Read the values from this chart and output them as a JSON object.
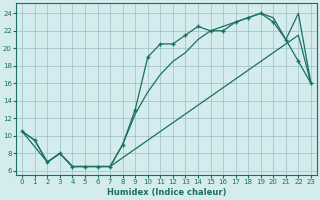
{
  "xlabel": "Humidex (Indice chaleur)",
  "xlim": [
    -0.5,
    23.5
  ],
  "ylim": [
    5.5,
    25.2
  ],
  "xticks": [
    0,
    1,
    2,
    3,
    4,
    5,
    6,
    7,
    8,
    9,
    10,
    11,
    12,
    13,
    14,
    15,
    16,
    17,
    18,
    19,
    20,
    21,
    22,
    23
  ],
  "yticks": [
    6,
    8,
    10,
    12,
    14,
    16,
    18,
    20,
    22,
    24
  ],
  "color": "#1a7060",
  "bg_color": "#d4ecee",
  "curve_with_markers_x": [
    0,
    1,
    2,
    3,
    4,
    5,
    6,
    7,
    8,
    9,
    10,
    11,
    12,
    13,
    14,
    15,
    16,
    17,
    18,
    19,
    20,
    21,
    22,
    23
  ],
  "curve_with_markers_y": [
    10.5,
    9.5,
    7.0,
    8.0,
    6.5,
    6.5,
    6.5,
    6.5,
    9.0,
    13.0,
    19.0,
    20.5,
    20.5,
    21.5,
    22.5,
    22.0,
    22.0,
    23.0,
    23.5,
    24.0,
    23.0,
    21.0,
    18.5,
    16.0
  ],
  "curve_straight_x": [
    0,
    1,
    2,
    3,
    4,
    5,
    6,
    7,
    8,
    9,
    10,
    11,
    12,
    13,
    14,
    15,
    16,
    17,
    18,
    19,
    20,
    21,
    22,
    23
  ],
  "curve_straight_y": [
    10.5,
    9.5,
    7.0,
    8.0,
    6.5,
    6.5,
    6.5,
    6.5,
    7.5,
    8.5,
    9.5,
    10.5,
    11.5,
    12.5,
    13.5,
    14.5,
    15.5,
    16.5,
    17.5,
    18.5,
    19.5,
    20.5,
    21.5,
    16.0
  ],
  "curve_middle_x": [
    0,
    2,
    3,
    4,
    5,
    6,
    7,
    8,
    9,
    10,
    11,
    12,
    13,
    14,
    15,
    16,
    17,
    18,
    19,
    20,
    21,
    22,
    23
  ],
  "curve_middle_y": [
    10.5,
    7.0,
    8.0,
    6.5,
    6.5,
    6.5,
    6.5,
    9.0,
    12.5,
    15.0,
    17.0,
    18.5,
    19.5,
    21.0,
    22.0,
    22.5,
    23.0,
    23.5,
    24.0,
    23.5,
    21.0,
    24.0,
    16.0
  ]
}
